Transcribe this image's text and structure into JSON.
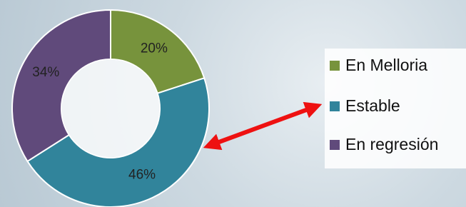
{
  "chart_data": {
    "type": "donut",
    "categories": [
      "En Melloria",
      "Estable",
      "En regresión"
    ],
    "values": [
      20,
      46,
      34
    ],
    "value_labels": [
      "20%",
      "46%",
      "34%"
    ],
    "colors": [
      "#77933c",
      "#31849b",
      "#604a7b"
    ]
  }
}
